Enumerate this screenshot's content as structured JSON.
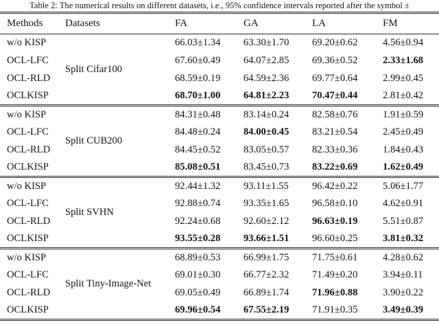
{
  "caption": "Table 2: The numerical results on different datasets, i.e., 95% confidence intervals reported after the symbol ±",
  "table": {
    "columns": {
      "methods": "Methods",
      "datasets": "Datasets",
      "fa": "FA",
      "ga": "GA",
      "la": "LA",
      "fm": "FM"
    },
    "groups": [
      {
        "dataset": "Split Cifar100",
        "rows": [
          {
            "method": "w/o KISP",
            "values": [
              {
                "text": "66.03±1.34",
                "bold": false
              },
              {
                "text": "63.30±1.70",
                "bold": false
              },
              {
                "text": "69.20±0.62",
                "bold": false
              },
              {
                "text": "4.56±0.94",
                "bold": false
              }
            ]
          },
          {
            "method": "OCL-LFC",
            "values": [
              {
                "text": "67.60±0.49",
                "bold": false
              },
              {
                "text": "64.07±2.85",
                "bold": false
              },
              {
                "text": "69.36±0.52",
                "bold": false
              },
              {
                "text": "2.33±1.68",
                "bold": true
              }
            ]
          },
          {
            "method": "OCL-RLD",
            "values": [
              {
                "text": "68.59±0.19",
                "bold": false
              },
              {
                "text": "64.59±2.36",
                "bold": false
              },
              {
                "text": "69.77±0.64",
                "bold": false
              },
              {
                "text": "2.99±0.45",
                "bold": false
              }
            ]
          },
          {
            "method": "OCLKISP",
            "values": [
              {
                "text": "68.70±1.00",
                "bold": true
              },
              {
                "text": "64.81±2.23",
                "bold": true
              },
              {
                "text": "70.47±0.44",
                "bold": true
              },
              {
                "text": "2.81±0.42",
                "bold": false
              }
            ]
          }
        ]
      },
      {
        "dataset": "Split CUB200",
        "rows": [
          {
            "method": "w/o KISP",
            "values": [
              {
                "text": "84.31±0.48",
                "bold": false
              },
              {
                "text": "83.14±0.24",
                "bold": false
              },
              {
                "text": "82.58±0.76",
                "bold": false
              },
              {
                "text": "1.91±0.59",
                "bold": false
              }
            ]
          },
          {
            "method": "OCL-LFC",
            "values": [
              {
                "text": "84.48±0.24",
                "bold": false
              },
              {
                "text": "84.00±0.45",
                "bold": true
              },
              {
                "text": "83.21±0.54",
                "bold": false
              },
              {
                "text": "2.45±0.49",
                "bold": false
              }
            ]
          },
          {
            "method": "OCL-RLD",
            "values": [
              {
                "text": "84.45±0.52",
                "bold": false
              },
              {
                "text": "83.05±0.57",
                "bold": false
              },
              {
                "text": "82.33±0.36",
                "bold": false
              },
              {
                "text": "1.84±0.43",
                "bold": false
              }
            ]
          },
          {
            "method": "OCLKISP",
            "values": [
              {
                "text": "85.08±0.51",
                "bold": true
              },
              {
                "text": "83.45±0.73",
                "bold": false
              },
              {
                "text": "83.22±0.69",
                "bold": true
              },
              {
                "text": "1.62±0.49",
                "bold": true
              }
            ]
          }
        ]
      },
      {
        "dataset": "Split SVHN",
        "rows": [
          {
            "method": "w/o KISP",
            "values": [
              {
                "text": "92.44±1.32",
                "bold": false
              },
              {
                "text": "93.11±1.55",
                "bold": false
              },
              {
                "text": "96.42±0.22",
                "bold": false
              },
              {
                "text": "5.06±1.77",
                "bold": false
              }
            ]
          },
          {
            "method": "OCL-LFC",
            "values": [
              {
                "text": "92.88±0.74",
                "bold": false
              },
              {
                "text": "93.35±1.65",
                "bold": false
              },
              {
                "text": "96.58±0.10",
                "bold": false
              },
              {
                "text": "4.62±0.91",
                "bold": false
              }
            ]
          },
          {
            "method": "OCL-RLD",
            "values": [
              {
                "text": "92.24±0.68",
                "bold": false
              },
              {
                "text": "92.60±2.12",
                "bold": false
              },
              {
                "text": "96.63±0.19",
                "bold": true
              },
              {
                "text": "5.51±0.87",
                "bold": false
              }
            ]
          },
          {
            "method": "OCLKISP",
            "values": [
              {
                "text": "93.55±0.28",
                "bold": true
              },
              {
                "text": "93.66±1.51",
                "bold": true
              },
              {
                "text": "96.60±0.25",
                "bold": false
              },
              {
                "text": "3.81±0.32",
                "bold": true
              }
            ]
          }
        ]
      },
      {
        "dataset": "Split Tiny-Image-Net",
        "rows": [
          {
            "method": "w/o KISP",
            "values": [
              {
                "text": "68.89±0.53",
                "bold": false
              },
              {
                "text": "66.99±1.75",
                "bold": false
              },
              {
                "text": "71.75±0.61",
                "bold": false
              },
              {
                "text": "4.28±0.62",
                "bold": false
              }
            ]
          },
          {
            "method": "OCL-LFC",
            "values": [
              {
                "text": "69.01±0.30",
                "bold": false
              },
              {
                "text": "66.77±2.32",
                "bold": false
              },
              {
                "text": "71.49±0.20",
                "bold": false
              },
              {
                "text": "3.94±0.11",
                "bold": false
              }
            ]
          },
          {
            "method": "OCL-RLD",
            "values": [
              {
                "text": "69.05±0.49",
                "bold": false
              },
              {
                "text": "66.89±1.74",
                "bold": false
              },
              {
                "text": "71.96±0.88",
                "bold": true
              },
              {
                "text": "3.90±0.22",
                "bold": false
              }
            ]
          },
          {
            "method": "OCLKISP",
            "values": [
              {
                "text": "69.96±0.54",
                "bold": true
              },
              {
                "text": "67.55±2.19",
                "bold": true
              },
              {
                "text": "71.91±0.35",
                "bold": false
              },
              {
                "text": "3.49±0.39",
                "bold": true
              }
            ]
          }
        ]
      }
    ]
  }
}
